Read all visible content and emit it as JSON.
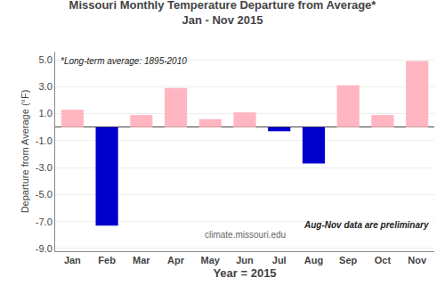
{
  "chart_data": {
    "type": "bar",
    "title": "Missouri Monthly Temperature Departure from Average*",
    "subtitle": "Jan - Nov 2015",
    "x_label": "Year = 2015",
    "y_label": "Departure from Average (°F)",
    "categories": [
      "Jan",
      "Feb",
      "Mar",
      "Apr",
      "May",
      "Jun",
      "Jul",
      "Aug",
      "Sep",
      "Oct",
      "Nov"
    ],
    "values": [
      1.3,
      -7.3,
      0.9,
      2.9,
      0.6,
      1.1,
      -0.3,
      -2.7,
      3.1,
      0.9,
      4.9
    ],
    "colors": [
      "#FFB6C1",
      "#0000CC",
      "#FFB6C1",
      "#FFB6C1",
      "#FFB6C1",
      "#FFB6C1",
      "#0000CC",
      "#0000CC",
      "#FFB6C1",
      "#FFB6C1",
      "#FFB6C1"
    ],
    "ylim": [
      -9.2,
      5.6
    ],
    "yticks": [
      {
        "value": 5,
        "label": "5.0"
      },
      {
        "value": 3,
        "label": "3.0"
      },
      {
        "value": 1,
        "label": "1.0"
      },
      {
        "value": -1,
        "label": "-1.0"
      },
      {
        "value": -3,
        "label": "-3.0"
      },
      {
        "value": -5,
        "label": "-5.0"
      },
      {
        "value": -7,
        "label": "-7.0"
      },
      {
        "value": -9,
        "label": "-9.0"
      }
    ],
    "grid": true,
    "annotations": [
      "*Long-term average: 1895-2010",
      "Aug-Nov data are preliminary",
      "climate.missouri.edu"
    ]
  }
}
